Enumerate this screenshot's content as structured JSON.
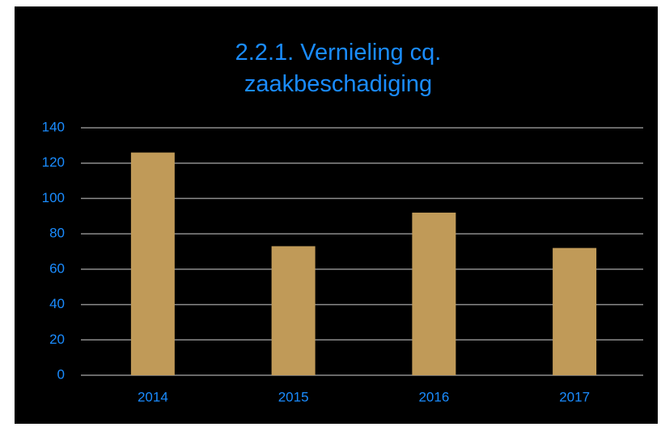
{
  "chart_data": {
    "type": "bar",
    "title": "2.2.1. Vernieling cq. zaakbeschadiging",
    "categories": [
      "2014",
      "2015",
      "2016",
      "2017"
    ],
    "values": [
      126,
      73,
      92,
      72
    ],
    "color": "#c09a58",
    "ylim": [
      0,
      140
    ],
    "yticks": [
      0,
      20,
      40,
      60,
      80,
      100,
      120,
      140
    ],
    "grid": true
  }
}
